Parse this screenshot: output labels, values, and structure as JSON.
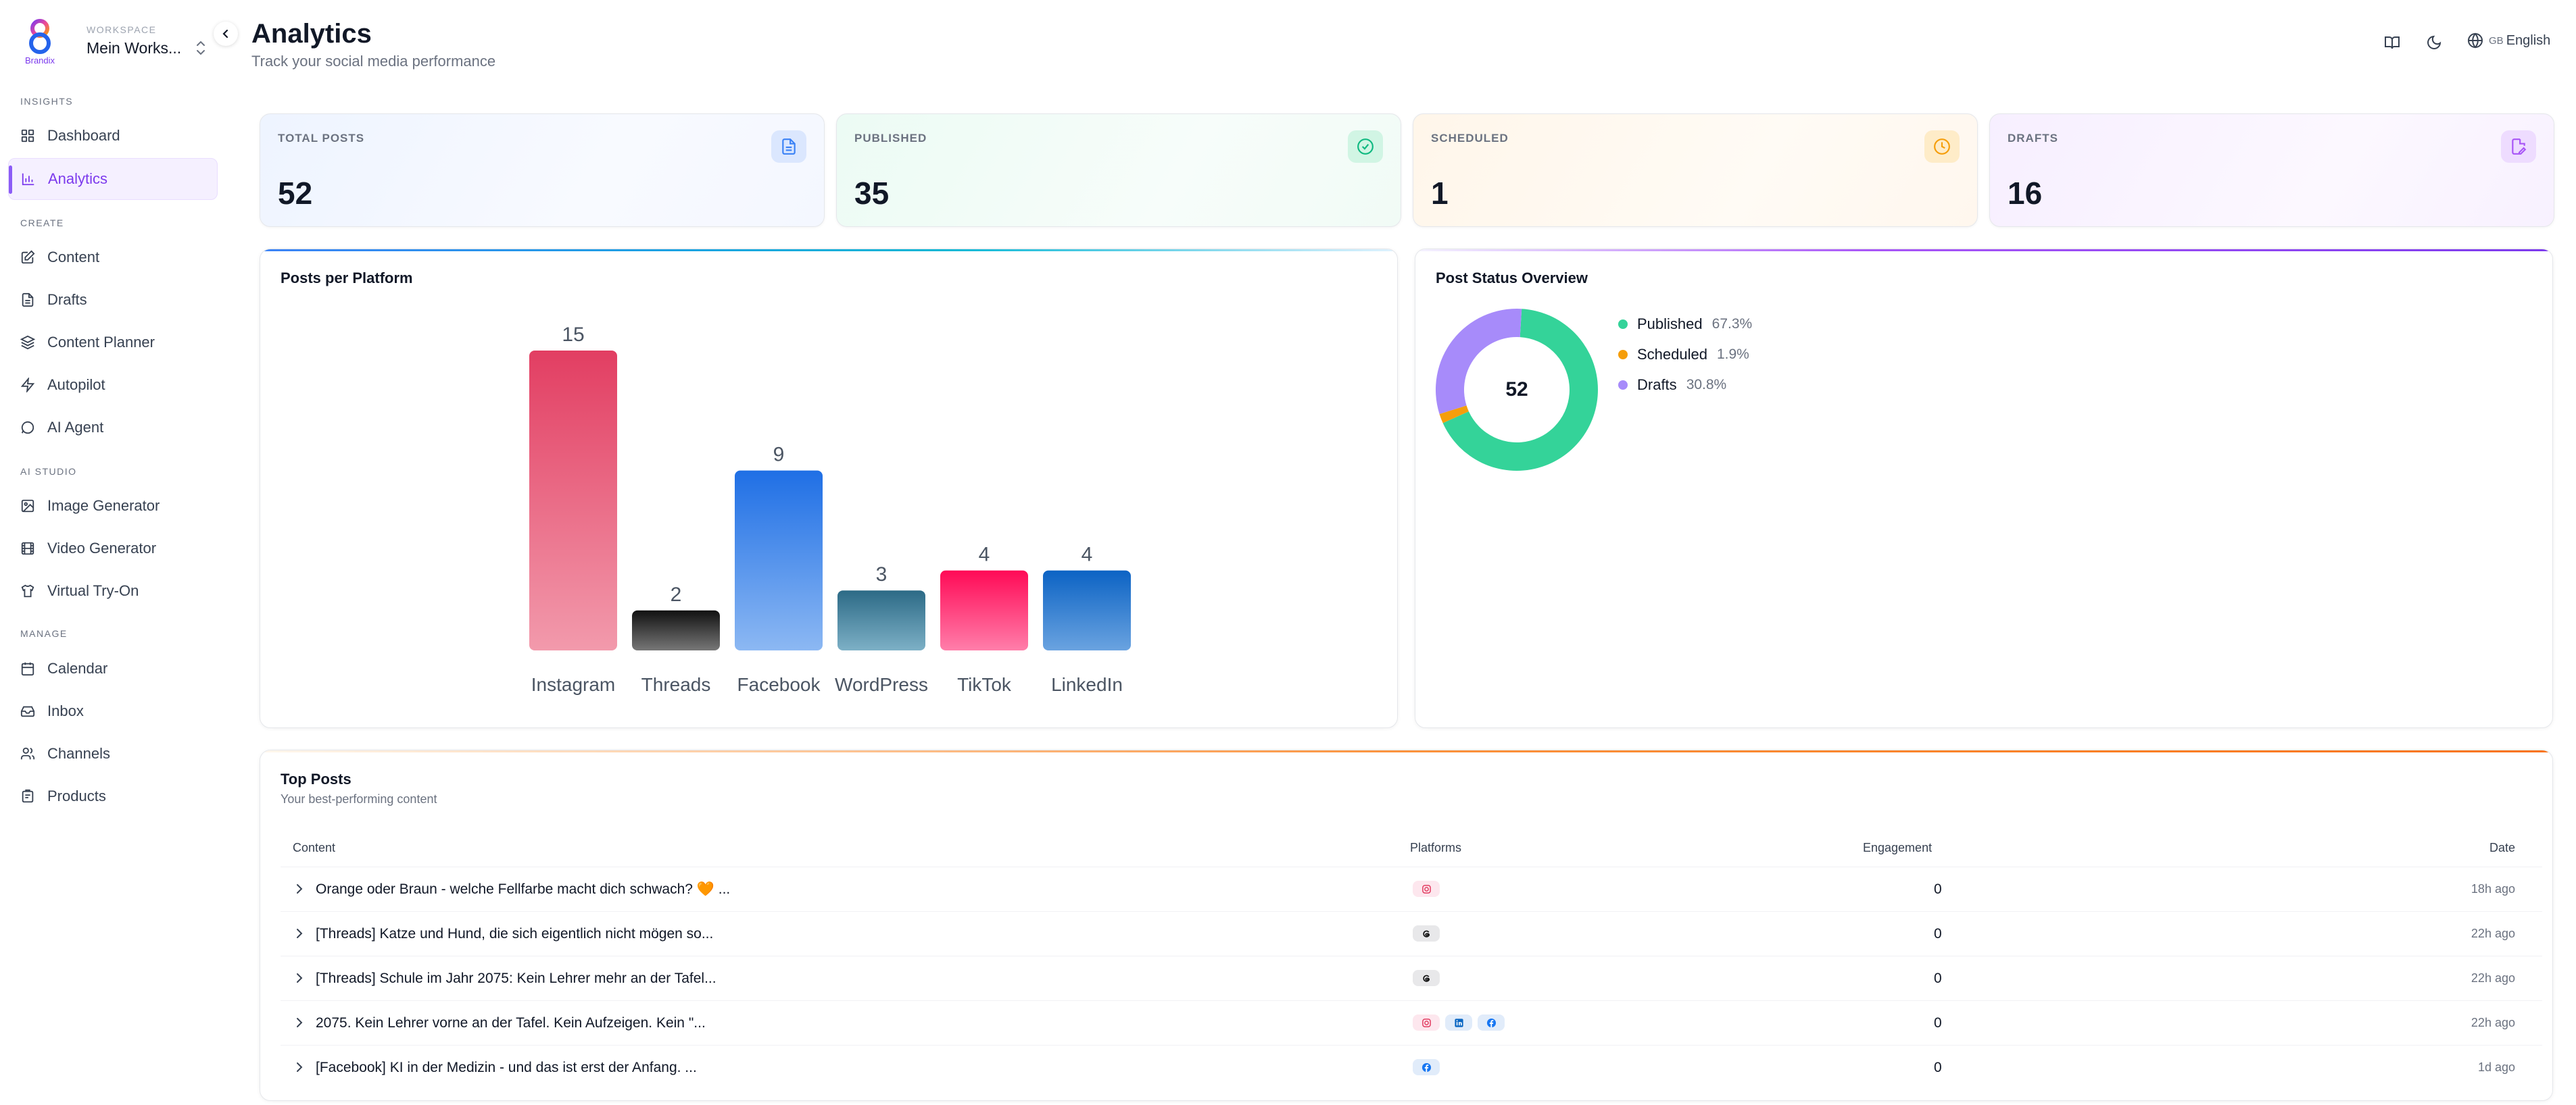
{
  "workspace": {
    "logo_text": "Brandix",
    "label": "WORKSPACE",
    "name": "Mein Works..."
  },
  "nav": {
    "sections": [
      {
        "title": "INSIGHTS",
        "items": [
          {
            "label": "Dashboard",
            "icon": "dashboard-icon"
          },
          {
            "label": "Analytics",
            "icon": "bar-chart-icon",
            "active": true
          }
        ]
      },
      {
        "title": "CREATE",
        "items": [
          {
            "label": "Content",
            "icon": "edit-icon"
          },
          {
            "label": "Drafts",
            "icon": "file-icon"
          },
          {
            "label": "Content Planner",
            "icon": "layers-icon"
          },
          {
            "label": "Autopilot",
            "icon": "zap-icon"
          },
          {
            "label": "AI Agent",
            "icon": "chat-icon"
          }
        ]
      },
      {
        "title": "AI STUDIO",
        "items": [
          {
            "label": "Image Generator",
            "icon": "image-icon"
          },
          {
            "label": "Video Generator",
            "icon": "film-icon"
          },
          {
            "label": "Virtual Try-On",
            "icon": "shirt-icon"
          }
        ]
      },
      {
        "title": "MANAGE",
        "items": [
          {
            "label": "Calendar",
            "icon": "calendar-icon"
          },
          {
            "label": "Inbox",
            "icon": "inbox-icon"
          },
          {
            "label": "Channels",
            "icon": "users-icon"
          },
          {
            "label": "Products",
            "icon": "package-icon"
          }
        ]
      }
    ]
  },
  "header": {
    "title": "Analytics",
    "subtitle": "Track your social media performance",
    "lang_code": "GB",
    "lang_label": "English"
  },
  "stats": [
    {
      "label": "TOTAL POSTS",
      "value": "52",
      "icon": "document-icon",
      "color": "#3b82f6"
    },
    {
      "label": "PUBLISHED",
      "value": "35",
      "icon": "check-circle-icon",
      "color": "#10b981"
    },
    {
      "label": "SCHEDULED",
      "value": "1",
      "icon": "clock-icon",
      "color": "#f59e0b"
    },
    {
      "label": "DRAFTS",
      "value": "16",
      "icon": "file-edit-icon",
      "color": "#a855f7"
    }
  ],
  "platform_chart": {
    "title": "Posts per Platform",
    "chart_data": {
      "type": "bar",
      "categories": [
        "Instagram",
        "Threads",
        "Facebook",
        "WordPress",
        "TikTok",
        "LinkedIn"
      ],
      "values": [
        15,
        2,
        9,
        3,
        4,
        4
      ],
      "ylim": [
        0,
        15
      ],
      "grid": false
    }
  },
  "status_chart": {
    "title": "Post Status Overview",
    "total": "52",
    "chart_data": {
      "type": "pie",
      "categories": [
        "Published",
        "Scheduled",
        "Drafts"
      ],
      "values": [
        67.3,
        1.9,
        30.8
      ],
      "labels": [
        "67.3%",
        "1.9%",
        "30.8%"
      ],
      "colors": [
        "#34d399",
        "#f59e0b",
        "#a78bfa"
      ],
      "legend": "right"
    }
  },
  "top_posts": {
    "title": "Top Posts",
    "subtitle": "Your best-performing content",
    "columns": {
      "content": "Content",
      "platforms": "Platforms",
      "engagement": "Engagement",
      "date": "Date"
    },
    "rows": [
      {
        "content": "Orange oder Braun - welche Fellfarbe macht dich schwach? 🧡 ...",
        "platforms": [
          "instagram"
        ],
        "engagement": "0",
        "date": "18h ago"
      },
      {
        "content": "[Threads] Katze und Hund, die sich eigentlich nicht mögen so...",
        "platforms": [
          "threads"
        ],
        "engagement": "0",
        "date": "22h ago"
      },
      {
        "content": "[Threads] Schule im Jahr 2075: Kein Lehrer mehr an der Tafel...",
        "platforms": [
          "threads"
        ],
        "engagement": "0",
        "date": "22h ago"
      },
      {
        "content": "2075. Kein Lehrer vorne an der Tafel. Kein Aufzeigen. Kein \"...",
        "platforms": [
          "instagram",
          "linkedin",
          "facebook"
        ],
        "engagement": "0",
        "date": "22h ago"
      },
      {
        "content": "[Facebook] KI in der Medizin - und das ist erst der Anfang. ...",
        "platforms": [
          "facebook"
        ],
        "engagement": "0",
        "date": "1d ago"
      }
    ]
  }
}
